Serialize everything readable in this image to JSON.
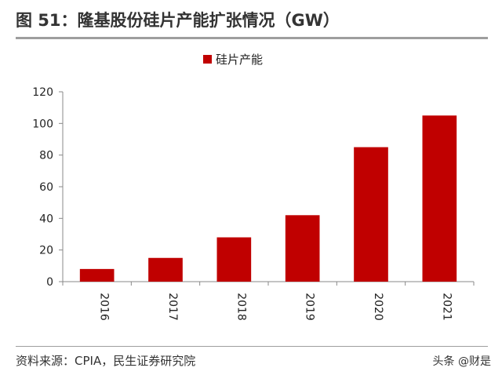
{
  "header": {
    "title": "图 51：隆基股份硅片产能扩张情况（GW）"
  },
  "footer": {
    "source": "资料来源：CPIA，民生证券研究院",
    "watermark": "头条 @财是"
  },
  "colors": {
    "bar": "#c00000",
    "rule": "#9e9e9e"
  },
  "chart_data": {
    "type": "bar",
    "categories": [
      "2016",
      "2017",
      "2018",
      "2019",
      "2020",
      "2021"
    ],
    "series": [
      {
        "name": "硅片产能",
        "values": [
          8,
          15,
          28,
          42,
          85,
          105
        ]
      }
    ],
    "ylim": [
      0,
      120
    ],
    "yticks": [
      "0",
      "20",
      "40",
      "60",
      "80",
      "100",
      "120"
    ],
    "grid": false,
    "legend": "top-center",
    "xlabel": "",
    "ylabel": ""
  }
}
